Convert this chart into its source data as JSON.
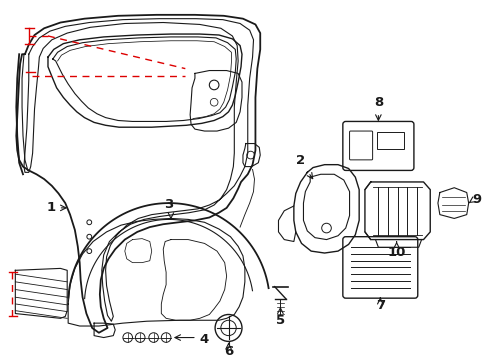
{
  "background_color": "#ffffff",
  "line_color": "#1a1a1a",
  "red_color": "#dd0000",
  "figsize": [
    4.89,
    3.6
  ],
  "dpi": 100
}
